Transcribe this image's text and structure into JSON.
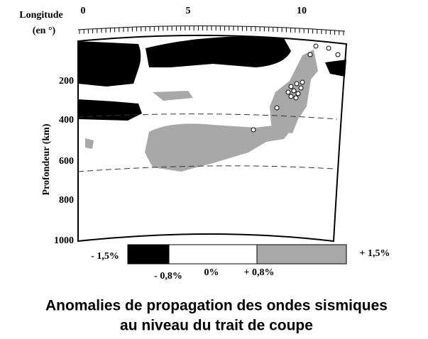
{
  "axes": {
    "x_label": [
      "Longitude",
      "(en °)"
    ],
    "x_ticks": [
      "0",
      "5",
      "10"
    ],
    "y_label": "Profondeur (km)",
    "y_ticks": [
      "200",
      "400",
      "600",
      "800",
      "1000"
    ]
  },
  "legend": {
    "left": "- 1,5%",
    "right": "+ 1,5%",
    "ticks": [
      "- 0,8%",
      "0%",
      "+ 0,8%"
    ]
  },
  "caption": [
    "Anomalies de propagation des ondes sismiques",
    "au niveau du trait de coupe"
  ]
}
